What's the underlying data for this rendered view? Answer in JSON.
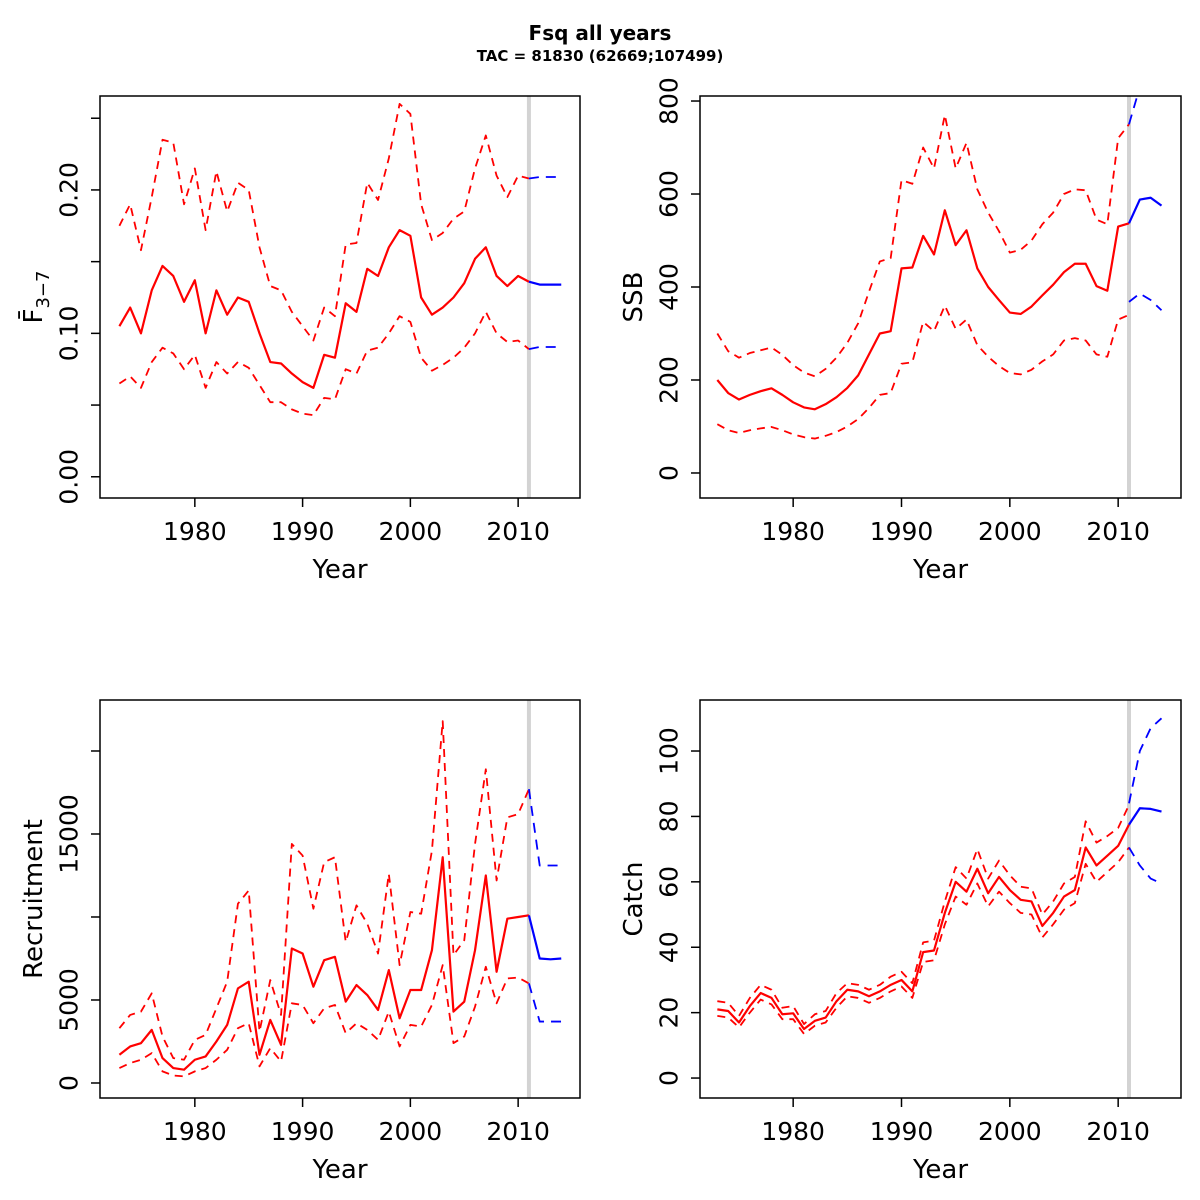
{
  "header": {
    "title": "Fsq all years",
    "subtitle": "TAC = 81830 (62669;107499)"
  },
  "colors": {
    "historic": "#ff0000",
    "projection": "#0000ff",
    "forecast_divider": "#d3d3d3",
    "axis": "#000000",
    "background": "#ffffff"
  },
  "chart_data": {
    "type": "line",
    "layout": "2x2 grid, dashed lines are confidence bounds, vertical gray line marks forecast start",
    "xlabel": "Year",
    "x_ticks": [
      1980,
      1990,
      2000,
      2010
    ],
    "forecast_start_year": 2011,
    "years_hist": [
      1973,
      1974,
      1975,
      1976,
      1977,
      1978,
      1979,
      1980,
      1981,
      1982,
      1983,
      1984,
      1985,
      1986,
      1987,
      1988,
      1989,
      1990,
      1991,
      1992,
      1993,
      1994,
      1995,
      1996,
      1997,
      1998,
      1999,
      2000,
      2001,
      2002,
      2003,
      2004,
      2005,
      2006,
      2007,
      2008,
      2009,
      2010,
      2011
    ],
    "years_proj": [
      2011,
      2012,
      2013,
      2014
    ],
    "panels": [
      {
        "key": "fbar",
        "ylab": {
          "base": "F̄",
          "sub": "3−7"
        },
        "xlim": [
          1971.2,
          2015.74
        ],
        "ylim": [
          -0.0148,
          0.2655
        ],
        "y_ticks": [
          {
            "v": 0,
            "l": "0.00"
          },
          {
            "v": 0.05,
            "l": ""
          },
          {
            "v": 0.1,
            "l": "0.10"
          },
          {
            "v": 0.15,
            "l": ""
          },
          {
            "v": 0.2,
            "l": "0.20"
          },
          {
            "v": 0.25,
            "l": ""
          }
        ],
        "median": [
          0.105,
          0.118,
          0.1,
          0.13,
          0.147,
          0.14,
          0.122,
          0.137,
          0.1,
          0.13,
          0.113,
          0.125,
          0.122,
          0.1,
          0.08,
          0.079,
          0.072,
          0.066,
          0.062,
          0.085,
          0.083,
          0.121,
          0.115,
          0.145,
          0.14,
          0.16,
          0.172,
          0.168,
          0.125,
          0.113,
          0.118,
          0.125,
          0.135,
          0.152,
          0.16,
          0.14,
          0.133,
          0.14,
          0.136
        ],
        "upper": [
          0.175,
          0.19,
          0.158,
          0.195,
          0.235,
          0.233,
          0.19,
          0.215,
          0.172,
          0.213,
          0.185,
          0.205,
          0.2,
          0.16,
          0.133,
          0.13,
          0.115,
          0.105,
          0.095,
          0.118,
          0.112,
          0.162,
          0.163,
          0.205,
          0.193,
          0.222,
          0.26,
          0.253,
          0.19,
          0.165,
          0.17,
          0.18,
          0.185,
          0.215,
          0.238,
          0.21,
          0.195,
          0.21,
          0.208
        ],
        "lower": [
          0.065,
          0.07,
          0.062,
          0.08,
          0.09,
          0.086,
          0.075,
          0.085,
          0.062,
          0.08,
          0.072,
          0.08,
          0.076,
          0.064,
          0.052,
          0.052,
          0.047,
          0.044,
          0.043,
          0.055,
          0.054,
          0.075,
          0.072,
          0.088,
          0.09,
          0.1,
          0.112,
          0.108,
          0.083,
          0.074,
          0.078,
          0.083,
          0.09,
          0.1,
          0.115,
          0.1,
          0.094,
          0.095,
          0.089
        ],
        "proj_median": [
          0.136,
          0.134,
          0.134,
          0.134
        ],
        "proj_upper": [
          0.208,
          0.209,
          0.209,
          0.209
        ],
        "proj_lower": [
          0.089,
          0.0905,
          0.0905,
          0.0905
        ]
      },
      {
        "key": "ssb",
        "ylab": {
          "base": "SSB",
          "sub": ""
        },
        "xlim": [
          1971.4,
          2015.8
        ],
        "ylim": [
          -53.8,
          810.8
        ],
        "y_ticks": [
          {
            "v": 0,
            "l": "0"
          },
          {
            "v": 200,
            "l": "200"
          },
          {
            "v": 400,
            "l": "400"
          },
          {
            "v": 600,
            "l": "600"
          },
          {
            "v": 800,
            "l": "800"
          }
        ],
        "median": [
          200,
          172,
          158,
          168,
          176,
          182,
          168,
          152,
          141,
          137,
          148,
          163,
          183,
          210,
          255,
          300,
          305,
          440,
          442,
          510,
          470,
          565,
          490,
          522,
          440,
          400,
          372,
          345,
          342,
          358,
          382,
          405,
          432,
          450,
          450,
          402,
          392,
          530,
          537
        ],
        "upper": [
          300,
          262,
          248,
          258,
          264,
          270,
          254,
          232,
          216,
          208,
          224,
          248,
          280,
          322,
          390,
          455,
          462,
          630,
          622,
          700,
          655,
          770,
          655,
          710,
          610,
          560,
          520,
          474,
          480,
          500,
          535,
          560,
          600,
          610,
          608,
          545,
          535,
          720,
          750
        ],
        "lower": [
          105,
          92,
          86,
          92,
          96,
          99,
          92,
          83,
          77,
          74,
          80,
          88,
          100,
          116,
          140,
          168,
          172,
          235,
          238,
          325,
          305,
          360,
          310,
          330,
          275,
          250,
          230,
          215,
          212,
          222,
          240,
          255,
          285,
          290,
          285,
          255,
          250,
          330,
          340
        ],
        "proj_median": [
          537,
          588,
          592,
          575
        ],
        "proj_upper": [
          750,
          830,
          860,
          870
        ],
        "proj_lower": [
          368,
          386,
          372,
          350
        ]
      },
      {
        "key": "recruitment",
        "ylab": {
          "base": "Recruitment",
          "sub": ""
        },
        "xlim": [
          1971.2,
          2015.74
        ],
        "ylim": [
          -904,
          23072
        ],
        "y_ticks": [
          {
            "v": 0,
            "l": "0"
          },
          {
            "v": 5000,
            "l": "5000"
          },
          {
            "v": 10000,
            "l": ""
          },
          {
            "v": 15000,
            "l": "15000"
          },
          {
            "v": 20000,
            "l": ""
          }
        ],
        "median": [
          1700,
          2200,
          2400,
          3200,
          1500,
          900,
          800,
          1400,
          1600,
          2500,
          3500,
          5700,
          6100,
          1700,
          3800,
          2300,
          8100,
          7800,
          5800,
          7400,
          7600,
          4900,
          5900,
          5300,
          4400,
          6800,
          3900,
          5600,
          5600,
          8000,
          13600,
          4300,
          4900,
          8000,
          12500,
          6700,
          9900,
          10000,
          10100
        ],
        "upper": [
          3300,
          4100,
          4300,
          5400,
          2800,
          1500,
          1400,
          2600,
          2900,
          4500,
          6100,
          10800,
          11600,
          3100,
          6200,
          4100,
          14400,
          13700,
          10500,
          13300,
          13600,
          8500,
          10700,
          9600,
          7800,
          12600,
          7100,
          10300,
          10200,
          14000,
          21800,
          7700,
          8600,
          14400,
          18900,
          12200,
          16000,
          16200,
          17700
        ],
        "lower": [
          900,
          1200,
          1400,
          1800,
          700,
          450,
          400,
          700,
          900,
          1400,
          2000,
          3300,
          3600,
          1000,
          2100,
          1300,
          4800,
          4700,
          3600,
          4500,
          4700,
          3000,
          3600,
          3200,
          2600,
          4300,
          2200,
          3500,
          3400,
          4700,
          7100,
          2400,
          2800,
          4600,
          7000,
          4800,
          6300,
          6350,
          6000
        ],
        "proj_median": [
          10100,
          7500,
          7450,
          7500
        ],
        "proj_upper": [
          17700,
          13100,
          13100,
          13100
        ],
        "proj_lower": [
          6000,
          3700,
          3700,
          3700
        ]
      },
      {
        "key": "catch",
        "ylab": {
          "base": "Catch",
          "sub": ""
        },
        "xlim": [
          1971.4,
          2015.8
        ],
        "ylim": [
          -6.1,
          115.6
        ],
        "y_ticks": [
          {
            "v": 0,
            "l": "0"
          },
          {
            "v": 20,
            "l": "20"
          },
          {
            "v": 40,
            "l": "40"
          },
          {
            "v": 60,
            "l": "60"
          },
          {
            "v": 80,
            "l": "80"
          },
          {
            "v": 100,
            "l": "100"
          }
        ],
        "median": [
          21,
          20.5,
          17,
          22,
          26,
          24.5,
          19.5,
          19.8,
          15,
          17.5,
          18.5,
          23.5,
          27,
          26.5,
          25,
          26.5,
          28.5,
          30,
          26.5,
          38.5,
          39,
          50.5,
          60,
          57,
          64,
          56.5,
          61.5,
          57.5,
          54.5,
          54,
          46.5,
          50.5,
          55.5,
          57.5,
          70.5,
          65,
          68,
          71,
          77.5
        ],
        "upper": [
          23.5,
          23,
          19,
          24.5,
          28.5,
          27,
          21.5,
          22,
          16.5,
          19.5,
          20.5,
          26,
          29,
          28.5,
          27,
          28.5,
          31,
          32.5,
          29,
          41.5,
          42,
          54,
          64.5,
          61,
          70,
          61,
          66.5,
          62,
          58.5,
          58,
          50,
          54,
          59.5,
          61.5,
          78.5,
          72,
          74,
          76.5,
          83.5
        ],
        "lower": [
          19,
          18.5,
          15.5,
          20,
          24,
          22.5,
          18,
          18,
          13.5,
          16,
          17,
          21.5,
          25,
          24.5,
          23,
          24.5,
          26.5,
          28,
          24.5,
          35.5,
          36,
          47,
          55.5,
          53,
          59.5,
          52.5,
          57,
          53.5,
          50.5,
          50,
          43,
          47,
          51.5,
          53.5,
          65.5,
          60,
          63,
          66,
          70.5
        ],
        "proj_median": [
          77.5,
          82.5,
          82.3,
          81.5
        ],
        "proj_upper": [
          84,
          100,
          107,
          110
        ],
        "proj_lower": [
          70.5,
          65,
          61,
          59.5
        ]
      }
    ]
  }
}
